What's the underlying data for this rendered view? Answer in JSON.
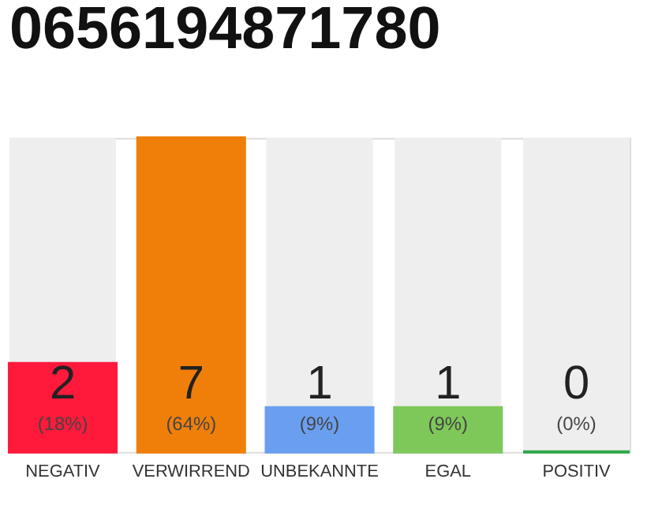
{
  "chart_data": {
    "type": "bar",
    "title": "0656194871780",
    "categories": [
      "NEGATIV",
      "VERWIRREND",
      "UNBEKANNTE",
      "EGAL",
      "POSITIV"
    ],
    "values": [
      18,
      64,
      9,
      9,
      0
    ],
    "colors": [
      "#ff1a3c",
      "#f07f0a",
      "#6a9fef",
      "#7ec85a",
      "#2ea84a"
    ],
    "value_labels": [
      "(18%)",
      "(64%)",
      "(9%)",
      "(9%)",
      "(0%)"
    ],
    "annotations": [
      "2",
      "7",
      "1",
      "1",
      "0"
    ]
  }
}
